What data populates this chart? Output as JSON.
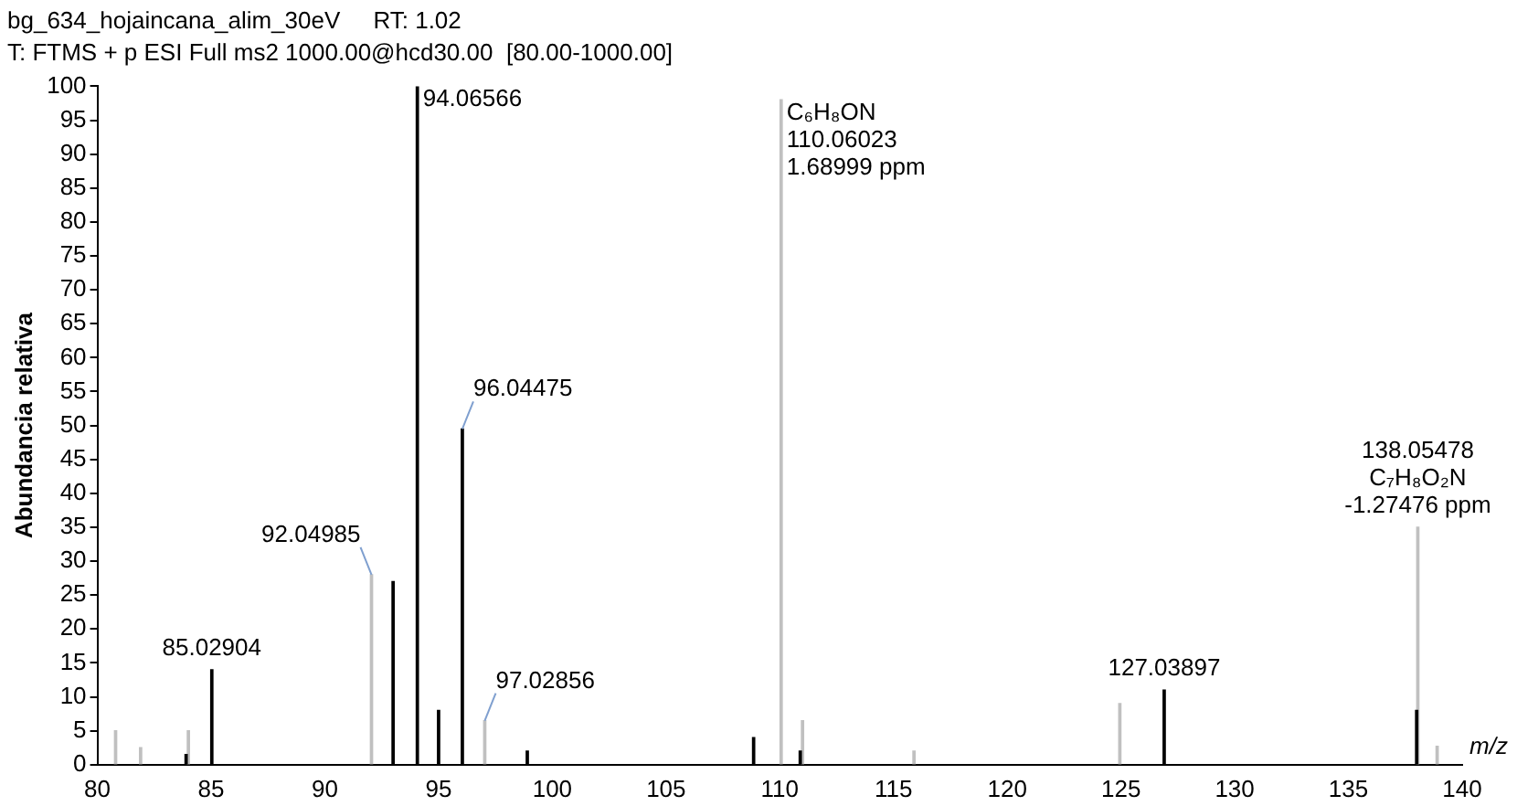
{
  "chart_data": {
    "type": "bar",
    "title": "bg_634_hojaincana_alim_30eV     RT: 1.02",
    "subtitle": "T: FTMS + p ESI Full ms2 1000.00@hcd30.00  [80.00-1000.00]",
    "xlabel": "m/z",
    "ylabel": "Abundancia relativa",
    "series": [
      {
        "color": "#000000",
        "x": [
          83.9,
          85.03,
          93.0,
          94.066,
          95.0,
          96.045,
          98.9,
          108.85,
          110.9,
          126.9,
          138.0
        ],
        "values": [
          1.5,
          14,
          27,
          100,
          8,
          49.5,
          2,
          4,
          2,
          11,
          8
        ]
      },
      {
        "color": "#c0c0c0",
        "x": [
          80.8,
          81.9,
          84.0,
          92.05,
          97.03,
          110.06,
          111.0,
          115.9,
          124.95,
          138.05,
          138.9
        ],
        "values": [
          5,
          2.5,
          5,
          28,
          6.5,
          98,
          6.5,
          2,
          9,
          35,
          2.7
        ]
      }
    ],
    "xlim": [
      80,
      140
    ],
    "xticks": [
      80,
      85,
      90,
      95,
      100,
      105,
      110,
      115,
      120,
      125,
      130,
      135,
      140
    ],
    "ylim": [
      0,
      100
    ],
    "yticks": [
      0,
      5,
      10,
      15,
      20,
      25,
      30,
      35,
      40,
      45,
      50,
      55,
      60,
      65,
      70,
      75,
      80,
      85,
      90,
      95,
      100
    ],
    "grid": false,
    "legend": false,
    "annotations": [
      {
        "text": "85.02904",
        "x": 85.03,
        "y": 14
      },
      {
        "text": "92.04985",
        "x": 92.05,
        "y": 28
      },
      {
        "text": "94.06566",
        "x": 94.066,
        "y": 100
      },
      {
        "text": "96.04475",
        "x": 96.045,
        "y": 49.5
      },
      {
        "text": "97.02856",
        "x": 97.03,
        "y": 6.5
      },
      {
        "text": "C₆H₈ON\n110.06023\n1.68999 ppm",
        "x": 110.06,
        "y": 98
      },
      {
        "text": "127.03897",
        "x": 126.9,
        "y": 11
      },
      {
        "text": "138.05478\nC₇H₈O₂N\n-1.27476 ppm",
        "x": 138.05,
        "y": 35
      }
    ]
  }
}
